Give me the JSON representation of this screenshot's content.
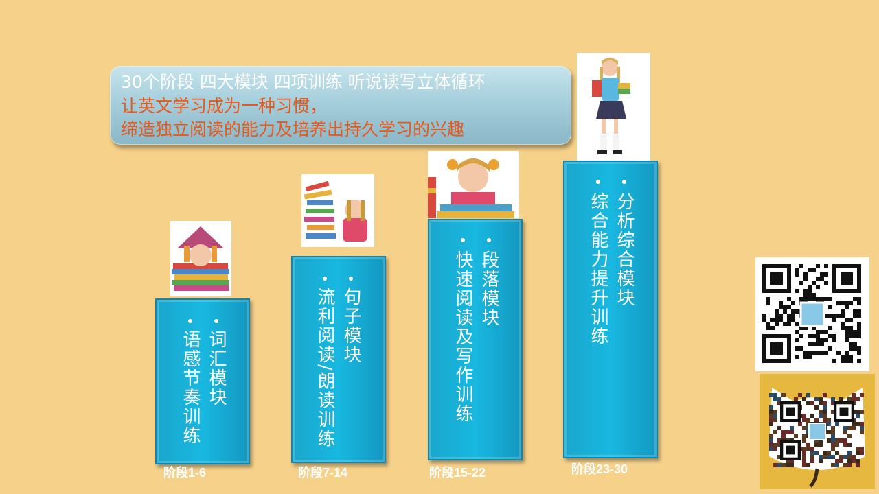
{
  "banner": {
    "line1": "30个阶段  四大模块   四项训练  听说读写立体循环",
    "line2": "让英文学习成为一种习惯，",
    "line3": "缔造独立阅读的能力及培养出持久学习的兴趣"
  },
  "stages": [
    {
      "module": "词汇模块",
      "training": "语感节奏训练",
      "label": "阶段1-6"
    },
    {
      "module": "句子模块",
      "training": "流利阅读/朗读训练",
      "label": "阶段7-14"
    },
    {
      "module": "段落模块",
      "training": "快速阅读及写作训练",
      "label": "阶段15-22"
    },
    {
      "module": "分析综合模块",
      "training": "综合能力提升训练",
      "label": "阶段23-30"
    }
  ],
  "icons": {
    "photo": "girl-with-books-photo",
    "qr": "qr-code-icon",
    "cat_qr": "cat-shaped-qr-code-icon"
  },
  "colors": {
    "background": "#f5d18a",
    "column": "#18b8e0",
    "banner_text_white": "#ffffff",
    "banner_text_orange": "#e8581a"
  }
}
